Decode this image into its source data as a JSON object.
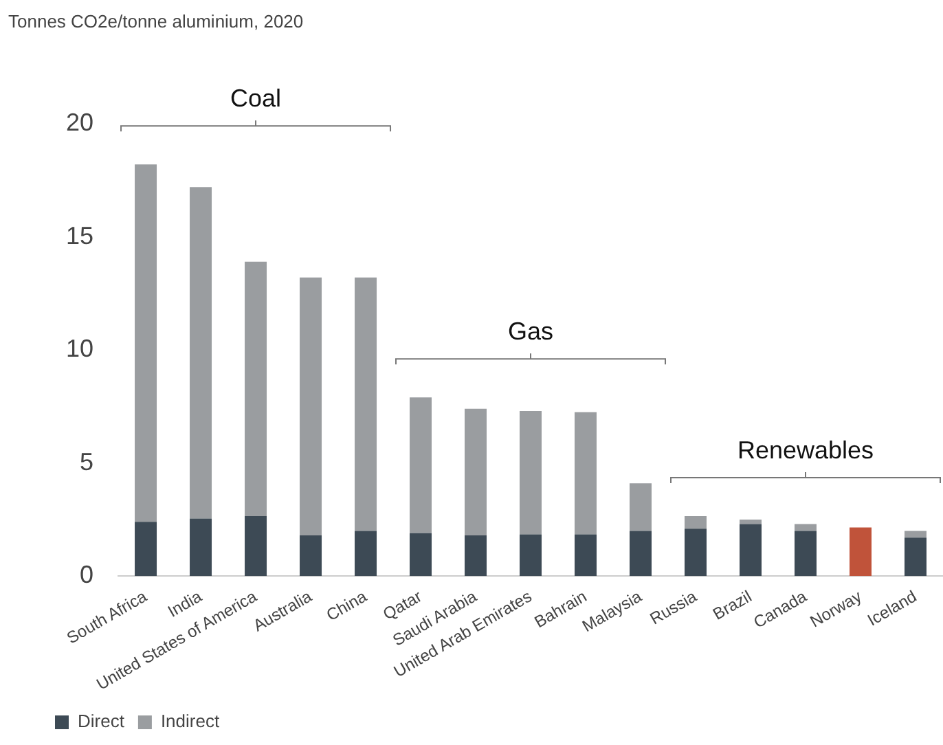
{
  "chart_data": {
    "type": "bar",
    "title": "Tonnes CO2e/tonne aluminium, 2020",
    "categories": [
      "South Africa",
      "India",
      "United States of America",
      "Australia",
      "China",
      "Qatar",
      "Saudi Arabia",
      "United Arab Emirates",
      "Bahrain",
      "Malaysia",
      "Russia",
      "Brazil",
      "Canada",
      "Norway",
      "Iceland"
    ],
    "stacked": true,
    "series": [
      {
        "name": "Direct",
        "color": "#3d4a55",
        "colors": [
          "#3d4a55",
          "#3d4a55",
          "#3d4a55",
          "#3d4a55",
          "#3d4a55",
          "#3d4a55",
          "#3d4a55",
          "#3d4a55",
          "#3d4a55",
          "#3d4a55",
          "#3d4a55",
          "#3d4a55",
          "#3d4a55",
          "#c0533a",
          "#3d4a55"
        ],
        "values": [
          2.4,
          2.55,
          2.65,
          1.8,
          2.0,
          1.9,
          1.8,
          1.85,
          1.85,
          2.0,
          2.1,
          2.3,
          2.0,
          2.15,
          1.7
        ]
      },
      {
        "name": "Indirect",
        "color": "#9a9da0",
        "values": [
          15.8,
          14.65,
          11.25,
          11.4,
          11.2,
          6.0,
          5.6,
          5.45,
          5.4,
          2.1,
          0.55,
          0.2,
          0.3,
          0,
          0.3
        ]
      }
    ],
    "ylim": [
      0,
      20
    ],
    "yticks": [
      0,
      5,
      10,
      15,
      20
    ],
    "grid": false,
    "legend": "bottom left",
    "annotations": [
      "Coal",
      "Gas",
      "Renewables"
    ]
  }
}
